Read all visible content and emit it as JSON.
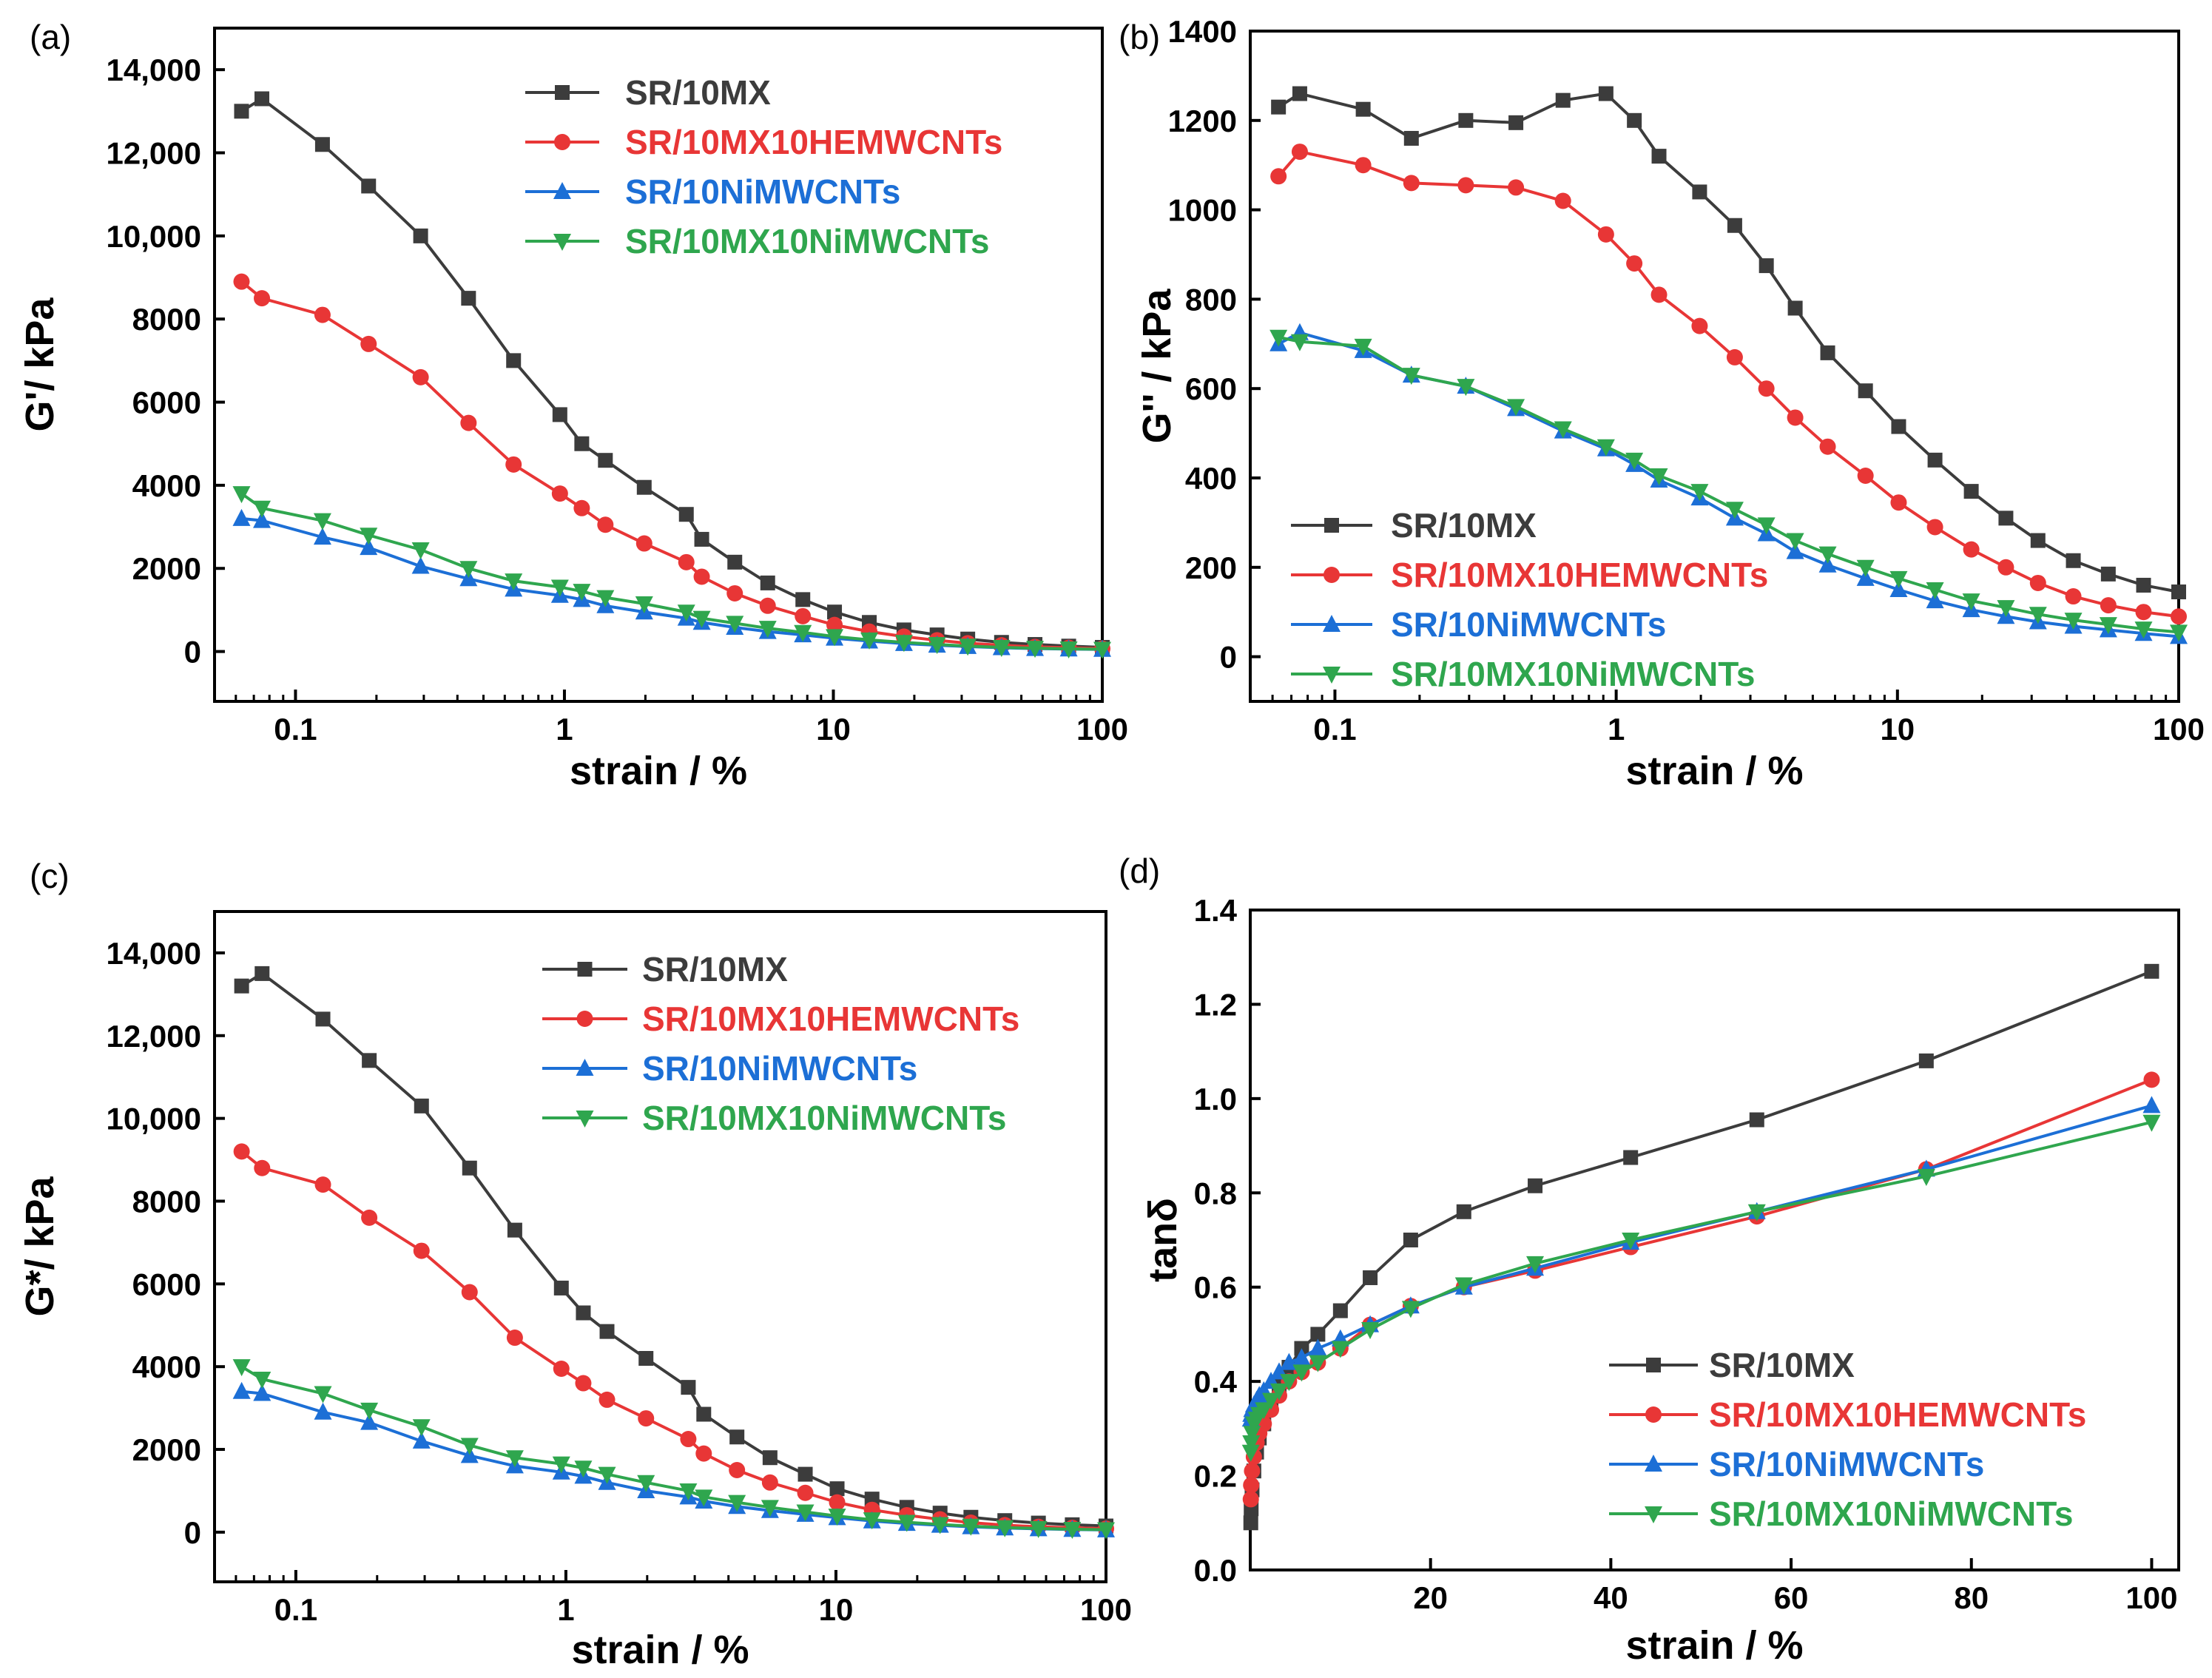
{
  "colors": {
    "SR/10MX": "#3c3c3c",
    "SR/10MX10HEMWCNTs": "#e83636",
    "SR/10NiMWCNTs": "#1c6fd6",
    "SR/10MX10NiMWCNTs": "#2fa64e"
  },
  "chart_data": [
    {
      "type": "line",
      "panel_label": "(a)",
      "xscale": "log",
      "xlabel": "strain / %",
      "ylabel": "G'/ kPa",
      "xlim": [
        0.05,
        100
      ],
      "ylim": [
        -1200,
        15000
      ],
      "xticks": [
        0.1,
        1,
        10,
        100
      ],
      "xtick_labels": [
        "0.1",
        "1",
        "10",
        "100"
      ],
      "yticks": [
        0,
        2000,
        4000,
        6000,
        8000,
        10000,
        12000,
        14000
      ],
      "ytick_labels": [
        "0",
        "2000",
        "4000",
        "6000",
        "8000",
        "10,000",
        "12,000",
        "14,000"
      ],
      "legend_position": "top-center",
      "x": [
        0.063,
        0.075,
        0.126,
        0.187,
        0.292,
        0.44,
        0.647,
        0.962,
        1.16,
        1.42,
        1.98,
        2.84,
        3.24,
        4.3,
        5.7,
        7.7,
        10.1,
        13.6,
        18.3,
        24.3,
        31.6,
        42.2,
        56.2,
        75.0,
        100.0
      ],
      "series": [
        {
          "name": "SR/10MX",
          "marker": "square",
          "values": [
            13000,
            13300,
            12200,
            11200,
            10000,
            8500,
            7000,
            5700,
            5000,
            4600,
            3950,
            3300,
            2700,
            2150,
            1650,
            1250,
            950,
            700,
            520,
            400,
            300,
            220,
            170,
            130,
            100
          ]
        },
        {
          "name": "SR/10MX10HEMWCNTs",
          "marker": "circle",
          "values": [
            8900,
            8500,
            8100,
            7400,
            6600,
            5500,
            4500,
            3800,
            3450,
            3050,
            2600,
            2150,
            1800,
            1400,
            1100,
            850,
            640,
            480,
            360,
            270,
            200,
            150,
            110,
            90,
            70
          ]
        },
        {
          "name": "SR/10NiMWCNTs",
          "marker": "triangle-up",
          "values": [
            3200,
            3150,
            2750,
            2500,
            2050,
            1750,
            1500,
            1350,
            1250,
            1100,
            950,
            800,
            700,
            580,
            480,
            400,
            320,
            250,
            190,
            150,
            120,
            90,
            70,
            60,
            50
          ]
        },
        {
          "name": "SR/10MX10NiMWCNTs",
          "marker": "triangle-down",
          "values": [
            3800,
            3450,
            3150,
            2800,
            2450,
            2000,
            1700,
            1550,
            1450,
            1300,
            1150,
            950,
            800,
            680,
            560,
            460,
            360,
            280,
            220,
            170,
            130,
            100,
            80,
            65,
            55
          ]
        }
      ]
    },
    {
      "type": "line",
      "panel_label": "(b)",
      "xscale": "log",
      "xlabel": "strain / %",
      "ylabel": "G'' / kPa",
      "xlim": [
        0.05,
        100
      ],
      "ylim": [
        -100,
        1400
      ],
      "xticks": [
        0.1,
        1,
        10,
        100
      ],
      "xtick_labels": [
        "0.1",
        "1",
        "10",
        "100"
      ],
      "yticks": [
        0,
        200,
        400,
        600,
        800,
        1000,
        1200,
        1400
      ],
      "ytick_labels": [
        "0",
        "200",
        "400",
        "600",
        "800",
        "1000",
        "1200",
        "1400"
      ],
      "legend_position": "bottom-left",
      "x": [
        0.063,
        0.075,
        0.126,
        0.187,
        0.292,
        0.44,
        0.647,
        0.92,
        1.16,
        1.42,
        1.98,
        2.64,
        3.42,
        4.33,
        5.65,
        7.7,
        10.1,
        13.6,
        18.3,
        24.3,
        31.6,
        42.2,
        56.2,
        75.0,
        100.0
      ],
      "series": [
        {
          "name": "SR/10MX",
          "marker": "square",
          "values": [
            1230,
            1260,
            1225,
            1160,
            1200,
            1195,
            1245,
            1260,
            1200,
            1120,
            1040,
            965,
            875,
            780,
            680,
            595,
            515,
            440,
            370,
            310,
            260,
            215,
            185,
            160,
            145
          ]
        },
        {
          "name": "SR/10MX10HEMWCNTs",
          "marker": "circle",
          "values": [
            1075,
            1130,
            1100,
            1060,
            1055,
            1050,
            1020,
            945,
            880,
            810,
            740,
            670,
            600,
            535,
            470,
            405,
            345,
            290,
            240,
            200,
            165,
            135,
            115,
            100,
            90
          ]
        },
        {
          "name": "SR/10NiMWCNTs",
          "marker": "triangle-up",
          "values": [
            700,
            725,
            685,
            630,
            605,
            555,
            505,
            465,
            430,
            395,
            355,
            310,
            275,
            235,
            205,
            175,
            150,
            125,
            105,
            90,
            78,
            68,
            60,
            52,
            45
          ]
        },
        {
          "name": "SR/10MX10NiMWCNTs",
          "marker": "triangle-down",
          "values": [
            715,
            705,
            695,
            630,
            605,
            560,
            510,
            470,
            440,
            405,
            370,
            330,
            295,
            260,
            230,
            200,
            175,
            150,
            125,
            110,
            95,
            82,
            72,
            62,
            55
          ]
        }
      ]
    },
    {
      "type": "line",
      "panel_label": "(c)",
      "xscale": "log",
      "xlabel": "strain / %",
      "ylabel": "G*/ kPa",
      "xlim": [
        0.05,
        100
      ],
      "ylim": [
        -1200,
        15000
      ],
      "xticks": [
        0.1,
        1,
        10,
        100
      ],
      "xtick_labels": [
        "0.1",
        "1",
        "10",
        "100"
      ],
      "yticks": [
        0,
        2000,
        4000,
        6000,
        8000,
        10000,
        12000,
        14000
      ],
      "ytick_labels": [
        "0",
        "2000",
        "4000",
        "6000",
        "8000",
        "10,000",
        "12,000",
        "14,000"
      ],
      "legend_position": "top-center",
      "x": [
        0.063,
        0.075,
        0.126,
        0.187,
        0.292,
        0.44,
        0.647,
        0.962,
        1.16,
        1.42,
        1.98,
        2.84,
        3.24,
        4.3,
        5.7,
        7.7,
        10.1,
        13.6,
        18.3,
        24.3,
        31.6,
        42.2,
        56.2,
        75.0,
        100.0
      ],
      "series": [
        {
          "name": "SR/10MX",
          "marker": "square",
          "values": [
            13200,
            13500,
            12400,
            11400,
            10300,
            8800,
            7300,
            5900,
            5300,
            4850,
            4200,
            3500,
            2850,
            2300,
            1800,
            1400,
            1050,
            800,
            600,
            460,
            360,
            280,
            220,
            180,
            150
          ]
        },
        {
          "name": "SR/10MX10HEMWCNTs",
          "marker": "circle",
          "values": [
            9200,
            8800,
            8400,
            7600,
            6800,
            5800,
            4700,
            3950,
            3600,
            3200,
            2750,
            2250,
            1900,
            1500,
            1200,
            950,
            720,
            540,
            410,
            310,
            230,
            170,
            130,
            105,
            85
          ]
        },
        {
          "name": "SR/10NiMWCNTs",
          "marker": "triangle-up",
          "values": [
            3400,
            3350,
            2900,
            2650,
            2200,
            1850,
            1600,
            1450,
            1350,
            1200,
            1000,
            850,
            750,
            620,
            520,
            430,
            350,
            270,
            210,
            165,
            130,
            100,
            80,
            65,
            55
          ]
        },
        {
          "name": "SR/10MX10NiMWCNTs",
          "marker": "triangle-down",
          "values": [
            4000,
            3700,
            3350,
            2950,
            2550,
            2100,
            1800,
            1650,
            1550,
            1400,
            1200,
            1000,
            850,
            720,
            600,
            490,
            390,
            300,
            240,
            185,
            145,
            110,
            90,
            70,
            60
          ]
        }
      ]
    },
    {
      "type": "line",
      "panel_label": "(d)",
      "xscale": "linear",
      "xlabel": "strain / %",
      "ylabel": "tanδ",
      "xlim": [
        0,
        103
      ],
      "ylim": [
        0.0,
        1.4
      ],
      "xticks": [
        20,
        40,
        60,
        80,
        100
      ],
      "xtick_labels": [
        "20",
        "40",
        "60",
        "80",
        "100"
      ],
      "yticks": [
        0.0,
        0.2,
        0.4,
        0.6,
        0.8,
        1.0,
        1.2,
        1.4
      ],
      "ytick_labels": [
        "0.0",
        "0.2",
        "0.4",
        "0.6",
        "0.8",
        "1.0",
        "1.2",
        "1.4"
      ],
      "legend_position": "bottom-right",
      "x": [
        0.06,
        0.1,
        0.2,
        0.4,
        0.7,
        1.0,
        1.5,
        2.3,
        3.2,
        4.3,
        5.7,
        7.5,
        10.0,
        13.3,
        17.8,
        23.7,
        31.6,
        42.2,
        56.2,
        75.0,
        100.0
      ],
      "series": [
        {
          "name": "SR/10MX",
          "marker": "square",
          "values": [
            0.1,
            0.13,
            0.17,
            0.21,
            0.25,
            0.28,
            0.31,
            0.35,
            0.39,
            0.43,
            0.47,
            0.5,
            0.55,
            0.62,
            0.7,
            0.76,
            0.815,
            0.875,
            0.955,
            1.08,
            1.27
          ]
        },
        {
          "name": "SR/10MX10HEMWCNTs",
          "marker": "circle",
          "values": [
            0.15,
            0.18,
            0.21,
            0.24,
            0.27,
            0.29,
            0.31,
            0.34,
            0.37,
            0.4,
            0.42,
            0.44,
            0.47,
            0.52,
            0.56,
            0.6,
            0.635,
            0.685,
            0.75,
            0.85,
            1.04
          ]
        },
        {
          "name": "SR/10NiMWCNTs",
          "marker": "triangle-up",
          "values": [
            0.32,
            0.33,
            0.34,
            0.35,
            0.36,
            0.37,
            0.38,
            0.4,
            0.42,
            0.44,
            0.45,
            0.47,
            0.49,
            0.52,
            0.56,
            0.6,
            0.64,
            0.695,
            0.76,
            0.85,
            0.985
          ]
        },
        {
          "name": "SR/10MX10NiMWCNTs",
          "marker": "triangle-down",
          "values": [
            0.25,
            0.27,
            0.29,
            0.31,
            0.32,
            0.33,
            0.34,
            0.36,
            0.38,
            0.4,
            0.42,
            0.44,
            0.47,
            0.51,
            0.555,
            0.605,
            0.65,
            0.7,
            0.76,
            0.835,
            0.95
          ]
        }
      ]
    }
  ]
}
